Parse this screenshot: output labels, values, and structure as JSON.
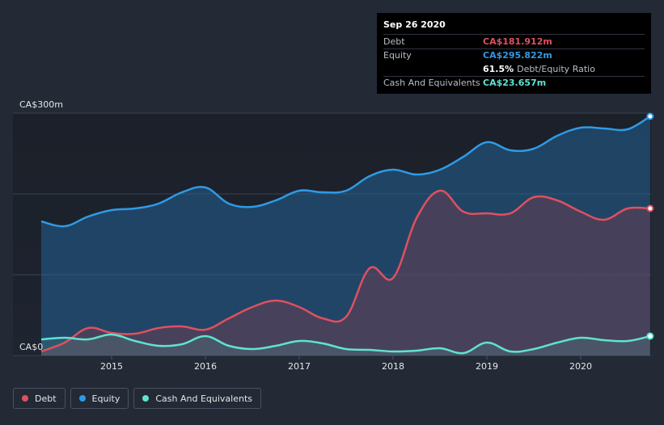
{
  "tooltip": {
    "date": "Sep 26 2020",
    "rows": [
      {
        "label": "Debt",
        "value": "CA$181.912m",
        "color": "#e0505f"
      },
      {
        "label": "Equity",
        "value": "CA$295.822m",
        "color": "#2f9ae6"
      }
    ],
    "ratio_value": "61.5%",
    "ratio_label": "Debt/Equity Ratio",
    "cash_label": "Cash And Equivalents",
    "cash_value": "CA$23.657m",
    "cash_color": "#5fe3d0"
  },
  "legend": [
    {
      "label": "Debt",
      "color": "#e0505f"
    },
    {
      "label": "Equity",
      "color": "#2f9ae6"
    },
    {
      "label": "Cash And Equivalents",
      "color": "#5fe3d0"
    }
  ],
  "chart_data": {
    "type": "area",
    "ylim": [
      0,
      300
    ],
    "y_tick_labels": [
      {
        "value": 300,
        "label": "CA$300m"
      },
      {
        "value": 0,
        "label": "CA$0"
      }
    ],
    "gridlines": [
      0,
      100,
      200,
      300
    ],
    "x_ticks": [
      "2015",
      "2016",
      "2017",
      "2018",
      "2019",
      "2020"
    ],
    "x_range": [
      2014.25,
      2020.74
    ],
    "series": [
      {
        "name": "Equity",
        "color": "#2f9ae6",
        "points": [
          [
            2014.25,
            166
          ],
          [
            2014.5,
            160
          ],
          [
            2014.75,
            172
          ],
          [
            2015.0,
            180
          ],
          [
            2015.25,
            182
          ],
          [
            2015.5,
            188
          ],
          [
            2015.75,
            202
          ],
          [
            2016.0,
            208
          ],
          [
            2016.25,
            188
          ],
          [
            2016.5,
            184
          ],
          [
            2016.75,
            192
          ],
          [
            2017.0,
            204
          ],
          [
            2017.25,
            202
          ],
          [
            2017.5,
            204
          ],
          [
            2017.75,
            222
          ],
          [
            2018.0,
            230
          ],
          [
            2018.25,
            224
          ],
          [
            2018.5,
            230
          ],
          [
            2018.75,
            246
          ],
          [
            2019.0,
            264
          ],
          [
            2019.25,
            254
          ],
          [
            2019.5,
            256
          ],
          [
            2019.75,
            272
          ],
          [
            2020.0,
            282
          ],
          [
            2020.25,
            281
          ],
          [
            2020.5,
            280
          ],
          [
            2020.74,
            296
          ]
        ]
      },
      {
        "name": "Debt",
        "color": "#e0505f",
        "points": [
          [
            2014.25,
            5
          ],
          [
            2014.5,
            16
          ],
          [
            2014.75,
            34
          ],
          [
            2015.0,
            28
          ],
          [
            2015.25,
            27
          ],
          [
            2015.5,
            34
          ],
          [
            2015.75,
            36
          ],
          [
            2016.0,
            32
          ],
          [
            2016.25,
            46
          ],
          [
            2016.5,
            60
          ],
          [
            2016.75,
            68
          ],
          [
            2017.0,
            60
          ],
          [
            2017.25,
            46
          ],
          [
            2017.5,
            48
          ],
          [
            2017.75,
            108
          ],
          [
            2018.0,
            96
          ],
          [
            2018.25,
            170
          ],
          [
            2018.5,
            204
          ],
          [
            2018.75,
            178
          ],
          [
            2019.0,
            176
          ],
          [
            2019.25,
            176
          ],
          [
            2019.5,
            196
          ],
          [
            2019.75,
            192
          ],
          [
            2020.0,
            178
          ],
          [
            2020.25,
            168
          ],
          [
            2020.5,
            182
          ],
          [
            2020.74,
            182
          ]
        ]
      },
      {
        "name": "Cash And Equivalents",
        "color": "#5fe3d0",
        "points": [
          [
            2014.25,
            20
          ],
          [
            2014.5,
            22
          ],
          [
            2014.75,
            20
          ],
          [
            2015.0,
            26
          ],
          [
            2015.25,
            18
          ],
          [
            2015.5,
            12
          ],
          [
            2015.75,
            14
          ],
          [
            2016.0,
            24
          ],
          [
            2016.25,
            12
          ],
          [
            2016.5,
            8
          ],
          [
            2016.75,
            12
          ],
          [
            2017.0,
            18
          ],
          [
            2017.25,
            15
          ],
          [
            2017.5,
            8
          ],
          [
            2017.75,
            7
          ],
          [
            2018.0,
            5
          ],
          [
            2018.25,
            6
          ],
          [
            2018.5,
            9
          ],
          [
            2018.75,
            3
          ],
          [
            2019.0,
            16
          ],
          [
            2019.25,
            5
          ],
          [
            2019.5,
            8
          ],
          [
            2019.75,
            16
          ],
          [
            2020.0,
            22
          ],
          [
            2020.25,
            19
          ],
          [
            2020.5,
            18
          ],
          [
            2020.74,
            24
          ]
        ]
      }
    ]
  }
}
